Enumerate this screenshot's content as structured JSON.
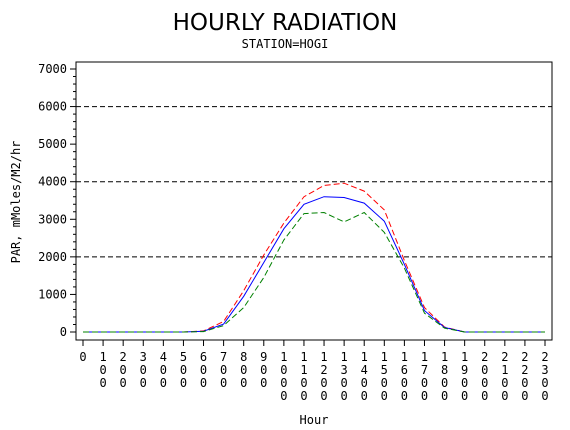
{
  "chart_data": {
    "type": "line",
    "title": "HOURLY RADIATION",
    "subtitle": "STATION=HOGI",
    "xlabel": "Hour",
    "ylabel": "PAR, mMoles/M2/hr",
    "xlim": [
      0,
      2300
    ],
    "ylim": [
      0,
      7000
    ],
    "x_ticks": [
      0,
      100,
      200,
      300,
      400,
      500,
      600,
      700,
      800,
      900,
      1000,
      1100,
      1200,
      1300,
      1400,
      1500,
      1600,
      1700,
      1800,
      1900,
      2000,
      2100,
      2200,
      2300
    ],
    "y_ticks": [
      0,
      1000,
      2000,
      3000,
      4000,
      5000,
      6000,
      7000
    ],
    "y_tick_labels": [
      "0",
      "1000",
      "2000",
      "3000",
      "4000",
      "5000",
      "6000",
      "7000"
    ],
    "reference_lines": [
      2000,
      4000,
      6000
    ],
    "x": [
      0,
      100,
      200,
      300,
      400,
      500,
      600,
      700,
      800,
      900,
      1000,
      1100,
      1200,
      1300,
      1400,
      1500,
      1600,
      1700,
      1800,
      1900,
      2000,
      2100,
      2200,
      2300
    ],
    "series": [
      {
        "color": "#ff0000",
        "style": "dashed",
        "values": [
          0,
          0,
          0,
          0,
          0,
          0,
          30,
          280,
          1100,
          2050,
          2900,
          3600,
          3900,
          3960,
          3750,
          3250,
          1900,
          650,
          130,
          0,
          0,
          0,
          0,
          0
        ]
      },
      {
        "color": "#0000ff",
        "style": "solid",
        "values": [
          0,
          0,
          0,
          0,
          0,
          0,
          20,
          210,
          950,
          1850,
          2750,
          3400,
          3600,
          3580,
          3430,
          2950,
          1800,
          570,
          120,
          0,
          0,
          0,
          0,
          0
        ]
      },
      {
        "color": "#008000",
        "style": "dashed",
        "values": [
          0,
          0,
          0,
          0,
          0,
          0,
          10,
          170,
          650,
          1450,
          2450,
          3150,
          3180,
          2930,
          3180,
          2650,
          1700,
          500,
          100,
          0,
          0,
          0,
          0,
          0
        ]
      }
    ]
  }
}
